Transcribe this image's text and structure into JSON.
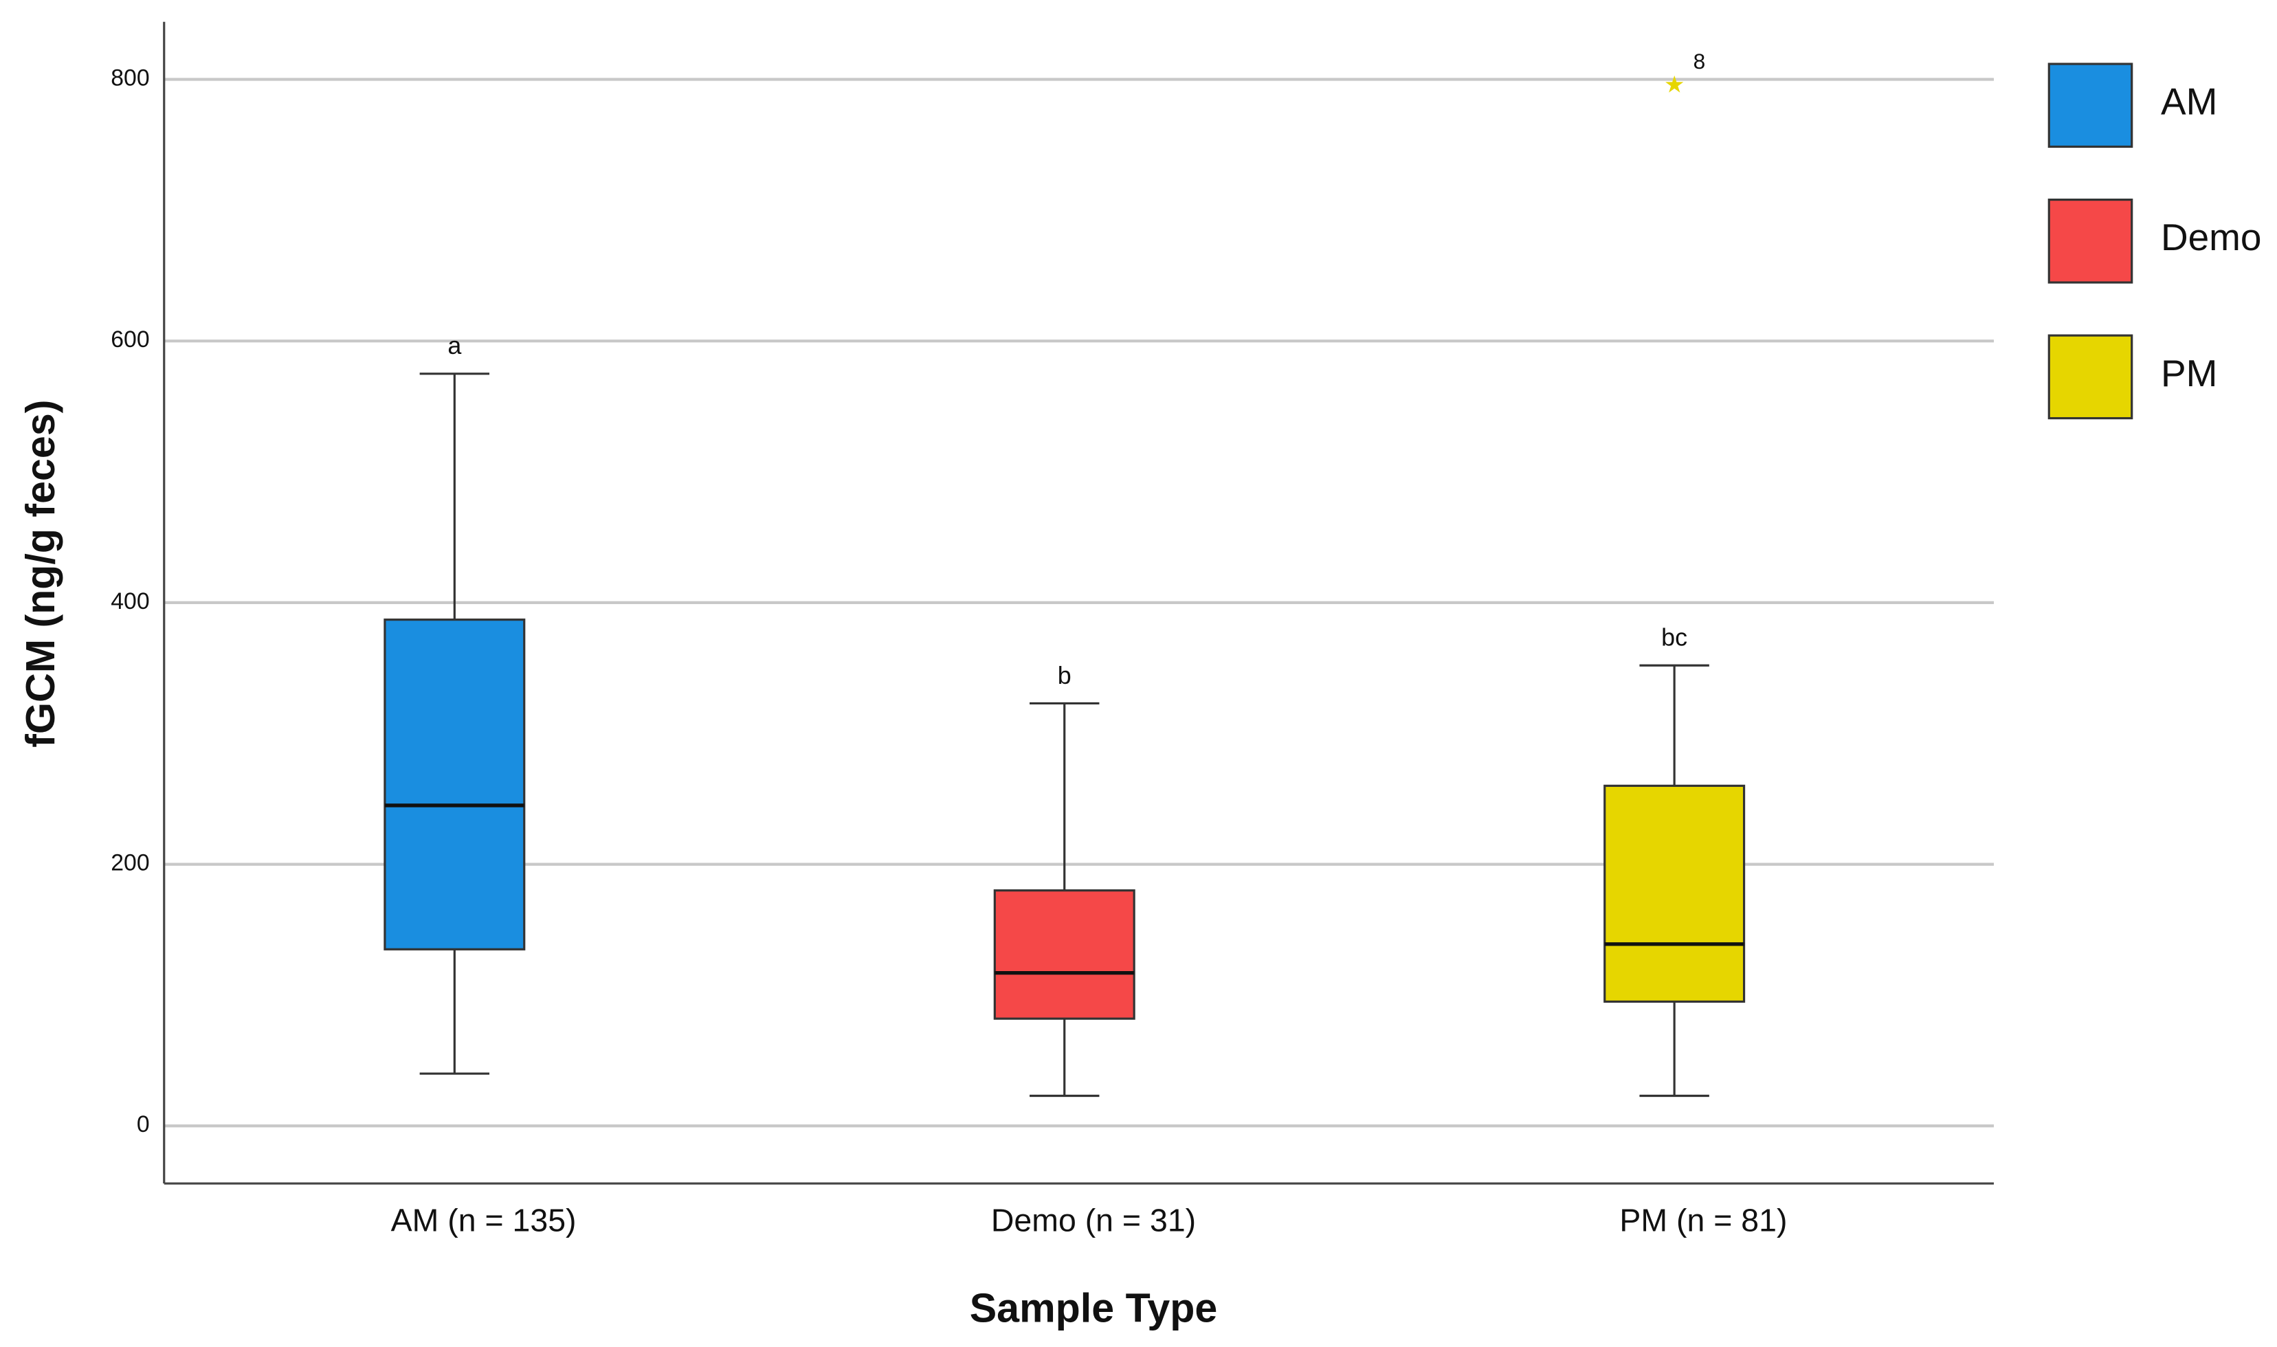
{
  "chart_data": {
    "type": "box",
    "x_label": "Sample Type",
    "y_label": "fGCM (ng/g feces)",
    "categories": [
      "AM (n = 135)",
      "Demo (n = 31)",
      "PM (n = 81)"
    ],
    "series": [
      {
        "name": "AM",
        "color": "#1a8ee0",
        "whisker_low": 40,
        "q1": 135,
        "median": 245,
        "q3": 387,
        "whisker_high": 575,
        "annotation": "a",
        "outliers": []
      },
      {
        "name": "Demo",
        "color": "#f54848",
        "whisker_low": 23,
        "q1": 82,
        "median": 117,
        "q3": 180,
        "whisker_high": 323,
        "annotation": "b",
        "outliers": []
      },
      {
        "name": "PM",
        "color": "#e6d600",
        "whisker_low": 23,
        "q1": 95,
        "median": 139,
        "q3": 260,
        "whisker_high": 352,
        "annotation": "bc",
        "outliers": [
          {
            "value": 797,
            "label": "8"
          }
        ]
      }
    ],
    "ylim": [
      -44,
      844
    ],
    "yticks": [
      0,
      200,
      400,
      600,
      800
    ],
    "grid": true,
    "legend": "right"
  }
}
